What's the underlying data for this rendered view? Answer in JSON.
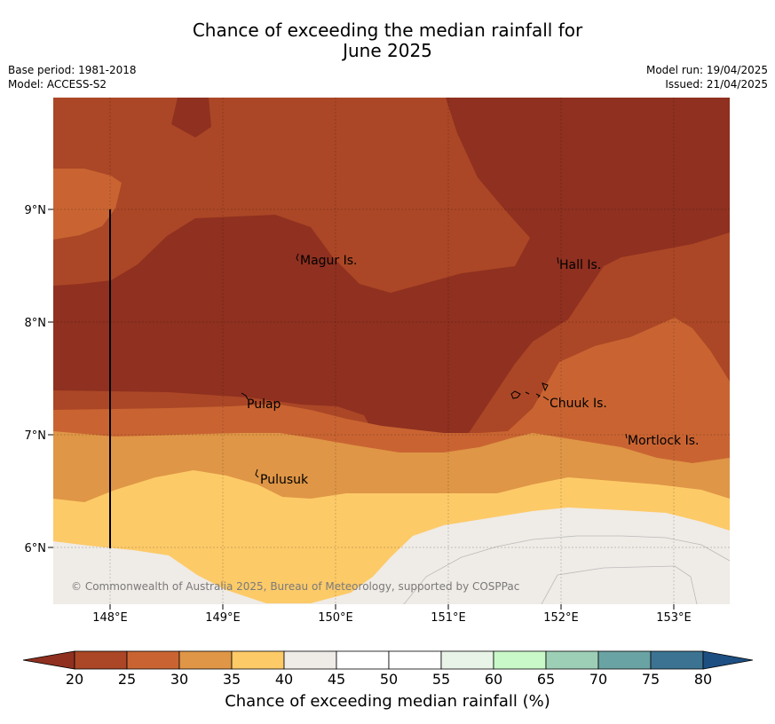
{
  "title_line1": "Chance of exceeding the median rainfall for",
  "title_line2": "June 2025",
  "base_period": "Base period: 1981-2018",
  "model": "Model: ACCESS-S2",
  "model_run": "Model run: 19/04/2025",
  "issued": "Issued: 21/04/2025",
  "copyright": "© Commonwealth of Australia 2025, Bureau of Meteorology, supported by COSPPac",
  "lat_labels": [
    "9°N",
    "8°N",
    "7°N",
    "6°N"
  ],
  "lon_labels": [
    "148°E",
    "149°E",
    "150°E",
    "151°E",
    "152°E",
    "153°E"
  ],
  "places": [
    {
      "name": "Magur Is."
    },
    {
      "name": "Hall Is."
    },
    {
      "name": "Pulap"
    },
    {
      "name": "Chuuk Is."
    },
    {
      "name": "Mortlock Is."
    },
    {
      "name": "Pulusuk"
    }
  ],
  "colorbar": {
    "title": "Chance of exceeding median rainfall (%)",
    "ticks": [
      "20",
      "25",
      "30",
      "35",
      "40",
      "45",
      "50",
      "55",
      "60",
      "65",
      "70",
      "75",
      "80"
    ],
    "colors": {
      "below_20": "#8f3020",
      "20_25": "#ab4726",
      "25_30": "#c96432",
      "30_35": "#df9646",
      "35_40": "#fdca68",
      "40_45": "#efebe6",
      "45_50": "#ffffff",
      "50_55": "#ffffff",
      "55_60": "#e8f4e8",
      "60_65": "#c9f9c9",
      "65_70": "#9dcfb6",
      "70_75": "#6aa3a4",
      "75_80": "#3c7393",
      "above_80": "#1d4f82"
    }
  }
}
